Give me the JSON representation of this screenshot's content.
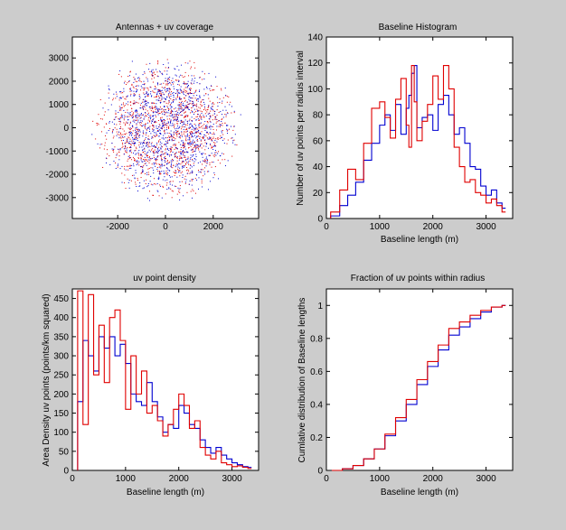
{
  "figure": {
    "background": "#cccccc",
    "series_colors": {
      "red": "#e00000",
      "blue": "#0000d0"
    }
  },
  "chart_data": [
    {
      "id": "uvcov",
      "type": "scatter",
      "title": "Antennas + uv coverage",
      "xlabel": "",
      "ylabel": "",
      "xlim": [
        -3900,
        3900
      ],
      "ylim": [
        -3900,
        3900
      ],
      "xticks": [
        -2000,
        0,
        2000
      ],
      "yticks": [
        -3000,
        -2000,
        -1000,
        0,
        1000,
        2000,
        3000
      ],
      "grid": false,
      "description": "Dense circular cloud of uv points, radius about 3000-3300 m, red and blue series overlapping",
      "series": [
        {
          "color": "#e00000",
          "points_count": 1200,
          "max_radius": 3250
        },
        {
          "color": "#0000d0",
          "points_count": 1200,
          "max_radius": 3300
        }
      ]
    },
    {
      "id": "hist",
      "type": "line",
      "title": "Baseline Histogram",
      "xlabel": "Baseline length (m)",
      "ylabel": "Number of uv points per radius interval",
      "xlim": [
        0,
        3500
      ],
      "ylim": [
        0,
        140
      ],
      "xticks": [
        0,
        1000,
        2000,
        3000
      ],
      "yticks": [
        0,
        20,
        40,
        60,
        80,
        100,
        120,
        140
      ],
      "grid": false,
      "step": true,
      "series": [
        {
          "color": "#0000d0",
          "x": [
            80,
            250,
            400,
            550,
            700,
            850,
            1000,
            1100,
            1200,
            1300,
            1400,
            1500,
            1550,
            1600,
            1650,
            1700,
            1800,
            1900,
            2000,
            2100,
            2200,
            2300,
            2400,
            2500,
            2600,
            2700,
            2800,
            2900,
            3000,
            3100,
            3200,
            3300
          ],
          "y": [
            2,
            10,
            18,
            28,
            45,
            58,
            72,
            80,
            68,
            88,
            65,
            85,
            95,
            112,
            118,
            70,
            78,
            80,
            68,
            88,
            95,
            80,
            65,
            70,
            58,
            40,
            38,
            25,
            18,
            22,
            12,
            8
          ]
        },
        {
          "color": "#e00000",
          "x": [
            80,
            250,
            400,
            550,
            700,
            850,
            1000,
            1100,
            1200,
            1300,
            1400,
            1500,
            1550,
            1600,
            1650,
            1700,
            1800,
            1900,
            2000,
            2100,
            2200,
            2300,
            2400,
            2500,
            2600,
            2700,
            2800,
            2900,
            3000,
            3100,
            3200,
            3300
          ],
          "y": [
            5,
            22,
            38,
            30,
            58,
            85,
            90,
            78,
            62,
            92,
            108,
            72,
            55,
            118,
            90,
            60,
            75,
            88,
            110,
            92,
            118,
            100,
            55,
            40,
            28,
            30,
            20,
            18,
            12,
            15,
            10,
            5
          ]
        }
      ]
    },
    {
      "id": "dens",
      "type": "line",
      "title": "uv point density",
      "xlabel": "Baseline length (m)",
      "ylabel": "Area Density uv points (points/km squared)",
      "xlim": [
        0,
        3500
      ],
      "ylim": [
        0,
        475
      ],
      "xticks": [
        0,
        1000,
        2000,
        3000
      ],
      "yticks": [
        0,
        50,
        100,
        150,
        200,
        250,
        300,
        350,
        400,
        450
      ],
      "grid": false,
      "step": true,
      "series": [
        {
          "color": "#0000d0",
          "x": [
            100,
            200,
            300,
            400,
            500,
            600,
            700,
            800,
            900,
            1000,
            1100,
            1200,
            1300,
            1400,
            1500,
            1600,
            1700,
            1800,
            1900,
            2000,
            2100,
            2200,
            2300,
            2400,
            2500,
            2600,
            2700,
            2800,
            2900,
            3000,
            3100,
            3200,
            3300
          ],
          "y": [
            180,
            340,
            300,
            260,
            350,
            320,
            350,
            300,
            330,
            280,
            200,
            180,
            170,
            230,
            180,
            140,
            100,
            120,
            110,
            170,
            150,
            120,
            110,
            80,
            60,
            45,
            60,
            40,
            30,
            20,
            15,
            10,
            8
          ]
        },
        {
          "color": "#e00000",
          "x": [
            100,
            200,
            300,
            400,
            500,
            600,
            700,
            800,
            900,
            1000,
            1100,
            1200,
            1300,
            1400,
            1500,
            1600,
            1700,
            1800,
            1900,
            2000,
            2100,
            2200,
            2300,
            2400,
            2500,
            2600,
            2700,
            2800,
            2900,
            3000,
            3100,
            3200,
            3300
          ],
          "y": [
            470,
            120,
            460,
            250,
            380,
            230,
            400,
            420,
            340,
            160,
            300,
            200,
            260,
            150,
            170,
            130,
            90,
            120,
            160,
            200,
            170,
            110,
            130,
            60,
            40,
            30,
            50,
            20,
            15,
            10,
            12,
            8,
            5
          ]
        }
      ]
    },
    {
      "id": "cum",
      "type": "line",
      "title": "Fraction of uv points within radius",
      "xlabel": "Baseline length (m)",
      "ylabel": "Cumlative distribution of Baseline lengths",
      "xlim": [
        0,
        3500
      ],
      "ylim": [
        0,
        1.1
      ],
      "xticks": [
        0,
        1000,
        2000,
        3000
      ],
      "yticks": [
        0,
        0.2,
        0.4,
        0.6,
        0.8,
        1
      ],
      "grid": false,
      "step": true,
      "series": [
        {
          "color": "#0000d0",
          "x": [
            100,
            300,
            500,
            700,
            900,
            1100,
            1300,
            1500,
            1700,
            1900,
            2100,
            2300,
            2500,
            2700,
            2900,
            3100,
            3300
          ],
          "y": [
            0,
            0.01,
            0.03,
            0.07,
            0.13,
            0.21,
            0.3,
            0.4,
            0.52,
            0.63,
            0.73,
            0.82,
            0.87,
            0.92,
            0.96,
            0.99,
            1.0
          ]
        },
        {
          "color": "#e00000",
          "x": [
            100,
            300,
            500,
            700,
            900,
            1100,
            1300,
            1500,
            1700,
            1900,
            2100,
            2300,
            2500,
            2700,
            2900,
            3100,
            3300
          ],
          "y": [
            0,
            0.01,
            0.03,
            0.07,
            0.13,
            0.22,
            0.32,
            0.43,
            0.55,
            0.66,
            0.76,
            0.86,
            0.9,
            0.94,
            0.97,
            0.99,
            1.0
          ]
        }
      ]
    }
  ]
}
